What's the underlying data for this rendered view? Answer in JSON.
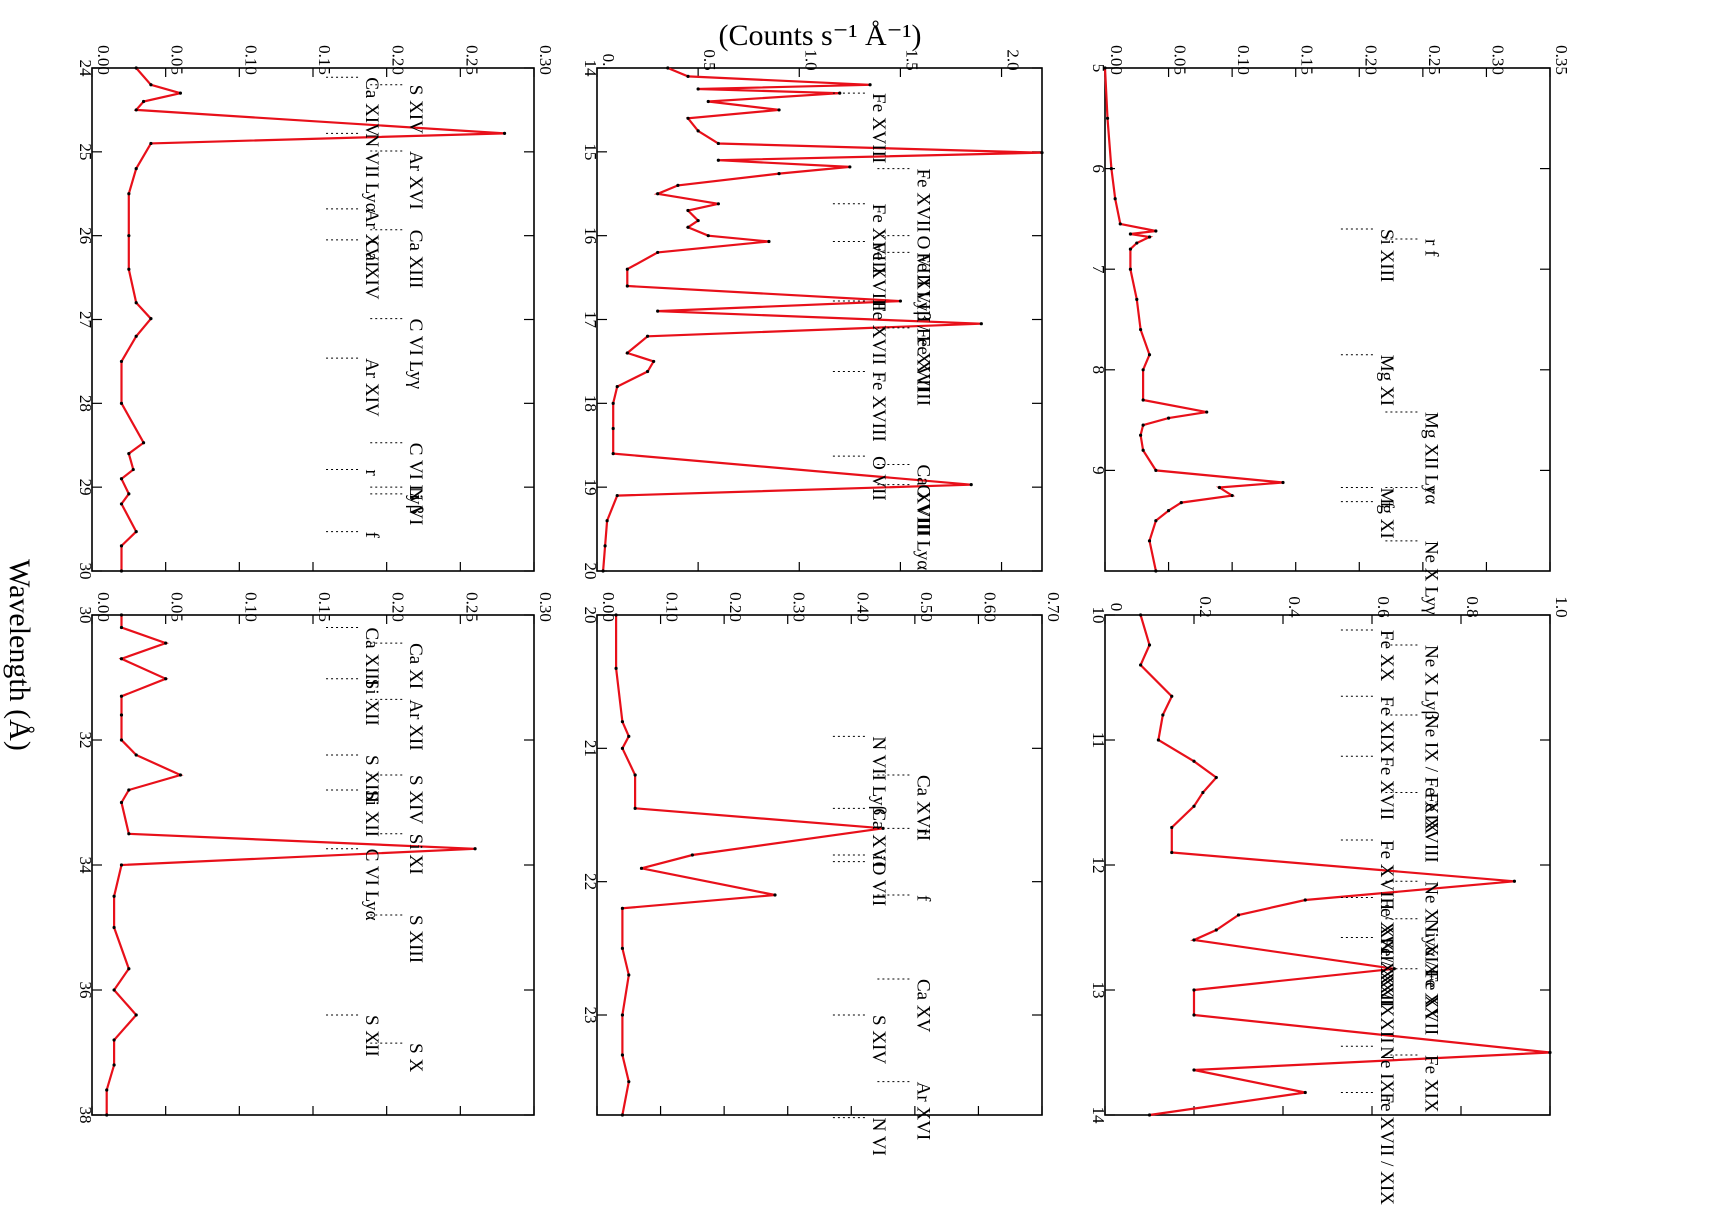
{
  "figure": {
    "ylabel": "(Counts s⁻¹ Å⁻¹)",
    "xlabel": "Wavelength (Å)",
    "model_color": "#e8101a",
    "data_color": "#000000"
  },
  "chart_data": [
    {
      "type": "line",
      "xlim": [
        5,
        10
      ],
      "ylim": [
        0,
        0.35
      ],
      "x_ticks": [
        5,
        6,
        7,
        8,
        9
      ],
      "y_ticks": [
        0,
        0.05,
        0.1,
        0.15,
        0.2,
        0.25,
        0.3,
        0.35
      ],
      "y_tick_labels": [
        "0.00",
        "0.05",
        "0.10",
        "0.15",
        "0.20",
        "0.25",
        "0.30",
        "0.35"
      ],
      "series": [
        {
          "x": [
            5.0,
            5.5,
            6.0,
            6.3,
            6.55,
            6.62,
            6.65,
            6.68,
            6.74,
            6.8,
            7.0,
            7.3,
            7.6,
            7.85,
            8.0,
            8.3,
            8.42,
            8.48,
            8.55,
            8.65,
            8.8,
            9.0,
            9.12,
            9.17,
            9.25,
            9.32,
            9.4,
            9.5,
            9.7,
            10.0
          ],
          "y": [
            0.0,
            0.002,
            0.005,
            0.008,
            0.012,
            0.04,
            0.02,
            0.035,
            0.025,
            0.02,
            0.02,
            0.025,
            0.028,
            0.035,
            0.03,
            0.03,
            0.08,
            0.05,
            0.03,
            0.028,
            0.03,
            0.04,
            0.14,
            0.09,
            0.1,
            0.06,
            0.05,
            0.04,
            0.035,
            0.04
          ]
        }
      ],
      "annotations": [
        {
          "text": "Si XIII",
          "x": 6.6
        },
        {
          "text": "r f",
          "x": 6.7
        },
        {
          "text": "Mg XI",
          "x": 7.85
        },
        {
          "text": "Mg XII Lyα",
          "x": 8.42
        },
        {
          "text": "Mg XI",
          "x": 9.17
        },
        {
          "text": "r",
          "x": 9.17
        },
        {
          "text": "f",
          "x": 9.31
        },
        {
          "text": "Ne X Lyγ",
          "x": 9.7
        }
      ]
    },
    {
      "type": "line",
      "xlim": [
        14,
        20
      ],
      "ylim": [
        0,
        2.2
      ],
      "x_ticks": [
        14,
        15,
        16,
        17,
        18,
        19,
        20
      ],
      "y_ticks": [
        0,
        0.5,
        1.0,
        1.5,
        2.0
      ],
      "y_tick_labels": [
        "0.",
        "0.5",
        "1.0",
        "1.5",
        "2.0"
      ],
      "series": [
        {
          "x": [
            14.0,
            14.1,
            14.2,
            14.25,
            14.3,
            14.4,
            14.5,
            14.6,
            14.75,
            14.9,
            15.01,
            15.1,
            15.18,
            15.26,
            15.4,
            15.5,
            15.62,
            15.7,
            15.82,
            15.9,
            16.0,
            16.07,
            16.2,
            16.4,
            16.6,
            16.78,
            16.9,
            17.05,
            17.2,
            17.4,
            17.5,
            17.62,
            17.8,
            18.0,
            18.3,
            18.6,
            18.97,
            19.1,
            19.4,
            19.7,
            20.0
          ],
          "y": [
            0.35,
            0.45,
            1.35,
            0.5,
            1.2,
            0.55,
            0.9,
            0.45,
            0.5,
            0.6,
            2.2,
            0.6,
            1.25,
            0.9,
            0.4,
            0.3,
            0.6,
            0.45,
            0.5,
            0.45,
            0.55,
            0.85,
            0.3,
            0.15,
            0.15,
            1.5,
            0.3,
            1.9,
            0.25,
            0.15,
            0.28,
            0.25,
            0.1,
            0.08,
            0.08,
            0.08,
            1.85,
            0.1,
            0.05,
            0.04,
            0.03
          ]
        }
      ],
      "annotations": [
        {
          "text": "Fe XVIII",
          "x": 14.3
        },
        {
          "text": "Fe XVII",
          "x": 15.2
        },
        {
          "text": "Fe XVIII",
          "x": 15.62
        },
        {
          "text": "O VIII Lyβ / Fe XVIII",
          "x": 16.0
        },
        {
          "text": "Fe XVIII",
          "x": 16.07
        },
        {
          "text": "Fe XVIII",
          "x": 16.2
        },
        {
          "text": "Fe XVII",
          "x": 16.78
        },
        {
          "text": "Fe XVII",
          "x": 17.1
        },
        {
          "text": "Fe XVIII",
          "x": 17.62
        },
        {
          "text": "O VIII Lyα",
          "x": 18.97
        },
        {
          "text": "O VII",
          "x": 18.63
        },
        {
          "text": "Ca XVIII",
          "x": 18.73
        }
      ]
    },
    {
      "type": "line",
      "xlim": [
        24,
        30
      ],
      "ylim": [
        0,
        0.3
      ],
      "x_ticks": [
        24,
        25,
        26,
        27,
        28,
        29,
        30
      ],
      "y_ticks": [
        0,
        0.05,
        0.1,
        0.15,
        0.2,
        0.25,
        0.3
      ],
      "y_tick_labels": [
        "0.00",
        "0.05",
        "0.10",
        "0.15",
        "0.20",
        "0.25",
        "0.30"
      ],
      "series": [
        {
          "x": [
            24.0,
            24.2,
            24.3,
            24.4,
            24.5,
            24.78,
            24.9,
            25.2,
            25.5,
            26.0,
            26.4,
            26.8,
            26.99,
            27.2,
            27.5,
            28.0,
            28.47,
            28.6,
            28.79,
            28.9,
            29.08,
            29.2,
            29.53,
            29.7,
            30.0
          ],
          "y": [
            0.03,
            0.04,
            0.06,
            0.035,
            0.03,
            0.28,
            0.04,
            0.03,
            0.025,
            0.025,
            0.025,
            0.03,
            0.04,
            0.03,
            0.02,
            0.02,
            0.035,
            0.025,
            0.028,
            0.02,
            0.025,
            0.02,
            0.03,
            0.02,
            0.02
          ]
        }
      ],
      "annotations": [
        {
          "text": "Ca XIV",
          "x": 24.11
        },
        {
          "text": "S XIV",
          "x": 24.2
        },
        {
          "text": "N VII Lyα",
          "x": 24.78
        },
        {
          "text": "Ar XVI",
          "x": 24.99
        },
        {
          "text": "Ar XVI",
          "x": 25.68
        },
        {
          "text": "Ca XIII",
          "x": 25.93
        },
        {
          "text": "Ca XIV",
          "x": 26.05
        },
        {
          "text": "C VI Lyγ",
          "x": 26.99
        },
        {
          "text": "Ar XIV",
          "x": 27.46
        },
        {
          "text": "C VI Lyβ",
          "x": 28.47
        },
        {
          "text": "r",
          "x": 28.79
        },
        {
          "text": "i",
          "x": 29.08
        },
        {
          "text": "f",
          "x": 29.53
        },
        {
          "text": "N VI",
          "x": 29.0
        }
      ]
    },
    {
      "type": "line",
      "xlim": [
        10,
        14
      ],
      "ylim": [
        0,
        1.0
      ],
      "x_ticks": [
        10,
        11,
        12,
        13,
        14
      ],
      "y_ticks": [
        0,
        0.2,
        0.4,
        0.6,
        0.8,
        1.0
      ],
      "y_tick_labels": [
        "0",
        "0.2",
        "0.4",
        "0.6",
        "0.8",
        "1.0"
      ],
      "series": [
        {
          "x": [
            10.0,
            10.24,
            10.4,
            10.65,
            10.8,
            11.0,
            11.17,
            11.3,
            11.42,
            11.53,
            11.7,
            11.9,
            12.13,
            12.28,
            12.4,
            12.52,
            12.6,
            12.83,
            13.0,
            13.2,
            13.5,
            13.64,
            13.82,
            14.0
          ],
          "y": [
            0.08,
            0.1,
            0.08,
            0.15,
            0.13,
            0.12,
            0.2,
            0.25,
            0.22,
            0.2,
            0.15,
            0.15,
            0.92,
            0.45,
            0.3,
            0.25,
            0.2,
            0.65,
            0.2,
            0.2,
            1.0,
            0.2,
            0.45,
            0.1
          ]
        }
      ],
      "annotations": [
        {
          "text": "Fe XX",
          "x": 10.12
        },
        {
          "text": "Ne X Lyβ",
          "x": 10.24
        },
        {
          "text": "Fe XIX",
          "x": 10.65
        },
        {
          "text": "Ne IX / Fe XIX",
          "x": 10.8
        },
        {
          "text": "Fe XVII",
          "x": 11.13
        },
        {
          "text": "Fe XVIII",
          "x": 11.42
        },
        {
          "text": "Fe XVIII / XX / XXII",
          "x": 11.8
        },
        {
          "text": "Ne X Lyα / Fe XVII",
          "x": 12.13
        },
        {
          "text": "Fe XVII/ XXI",
          "x": 12.26
        },
        {
          "text": "Ni XIX",
          "x": 12.43
        },
        {
          "text": "Fe XX / XXII",
          "x": 12.58
        },
        {
          "text": "Fe XX",
          "x": 12.83
        },
        {
          "text": "Ne IX r",
          "x": 13.45
        },
        {
          "text": "Fe XIX",
          "x": 13.52
        },
        {
          "text": "Fe XVII / XIX",
          "x": 13.82
        }
      ]
    },
    {
      "type": "line",
      "xlim": [
        20,
        23.75
      ],
      "ylim": [
        0,
        0.7
      ],
      "x_ticks": [
        20,
        21,
        22,
        23
      ],
      "y_ticks": [
        0,
        0.1,
        0.2,
        0.3,
        0.4,
        0.5,
        0.6,
        0.7
      ],
      "y_tick_labels": [
        "0.00",
        "0.10",
        "0.20",
        "0.30",
        "0.40",
        "0.50",
        "0.60",
        "0.70"
      ],
      "series": [
        {
          "x": [
            20.0,
            20.4,
            20.8,
            20.91,
            21.0,
            21.2,
            21.45,
            21.6,
            21.8,
            21.9,
            22.1,
            22.2,
            22.5,
            22.7,
            23.0,
            23.3,
            23.5,
            23.75
          ],
          "y": [
            0.03,
            0.03,
            0.04,
            0.05,
            0.04,
            0.06,
            0.06,
            0.45,
            0.15,
            0.07,
            0.28,
            0.04,
            0.04,
            0.05,
            0.04,
            0.04,
            0.05,
            0.04
          ]
        }
      ],
      "annotations": [
        {
          "text": "N VII Lyβ",
          "x": 20.91
        },
        {
          "text": "Ca XVII",
          "x": 21.2
        },
        {
          "text": "Ca XVI",
          "x": 21.45
        },
        {
          "text": "r",
          "x": 21.6
        },
        {
          "text": "i",
          "x": 21.8
        },
        {
          "text": "f",
          "x": 22.1
        },
        {
          "text": "O VII",
          "x": 21.85
        },
        {
          "text": "Ca XV",
          "x": 22.73
        },
        {
          "text": "S XIV",
          "x": 23.0
        },
        {
          "text": "Ar XVI",
          "x": 23.5
        },
        {
          "text": "N VI",
          "x": 23.77
        }
      ]
    },
    {
      "type": "line",
      "xlim": [
        30,
        38
      ],
      "ylim": [
        0,
        0.3
      ],
      "x_ticks": [
        30,
        32,
        34,
        36,
        38
      ],
      "y_ticks": [
        0,
        0.05,
        0.1,
        0.15,
        0.2,
        0.25,
        0.3
      ],
      "y_tick_labels": [
        "0.00",
        "0.05",
        "0.10",
        "0.15",
        "0.20",
        "0.25",
        "0.30"
      ],
      "series": [
        {
          "x": [
            30.0,
            30.2,
            30.45,
            30.7,
            31.02,
            31.3,
            31.6,
            32.0,
            32.24,
            32.56,
            32.8,
            33.0,
            33.5,
            33.74,
            34.0,
            34.5,
            35.0,
            35.66,
            36.0,
            36.4,
            36.8,
            37.2,
            37.6,
            38.0
          ],
          "y": [
            0.02,
            0.02,
            0.05,
            0.02,
            0.05,
            0.02,
            0.02,
            0.02,
            0.03,
            0.06,
            0.025,
            0.02,
            0.025,
            0.26,
            0.02,
            0.015,
            0.015,
            0.025,
            0.015,
            0.03,
            0.015,
            0.015,
            0.01,
            0.01
          ]
        }
      ],
      "annotations": [
        {
          "text": "Ca XIII",
          "x": 30.2
        },
        {
          "text": "Ca XI",
          "x": 30.45
        },
        {
          "text": "Si XII",
          "x": 31.02
        },
        {
          "text": "Ar XII",
          "x": 31.35
        },
        {
          "text": "S XIII",
          "x": 32.24
        },
        {
          "text": "S XIV",
          "x": 32.56
        },
        {
          "text": "Si XII",
          "x": 32.8
        },
        {
          "text": "Si XI",
          "x": 33.5
        },
        {
          "text": "C VI Lyα",
          "x": 33.74
        },
        {
          "text": "S XIII",
          "x": 34.8
        },
        {
          "text": "S XII",
          "x": 36.4
        },
        {
          "text": "S X",
          "x": 36.85
        }
      ]
    }
  ]
}
